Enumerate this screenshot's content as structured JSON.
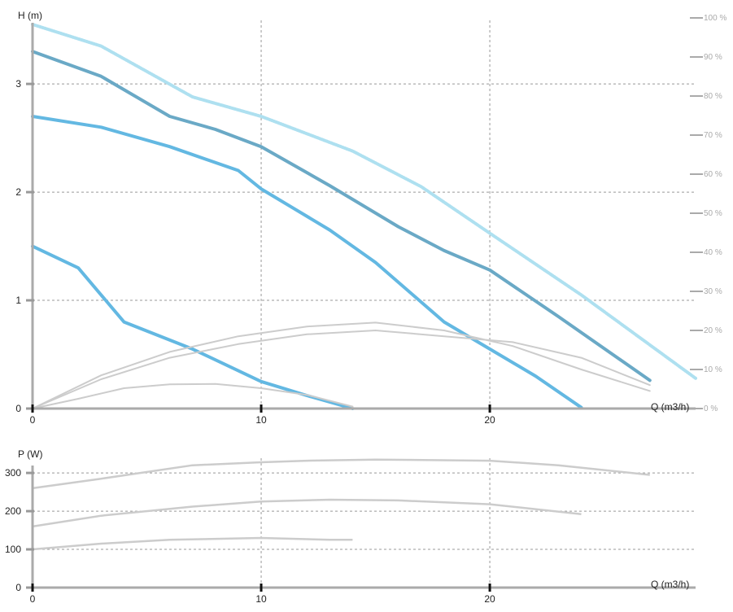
{
  "chart_data": [
    {
      "type": "line",
      "ylabel": "H (m)",
      "xlabel": "Q (m3/h)",
      "xlim": [
        0,
        29
      ],
      "ylim": [
        0,
        3.55
      ],
      "x_ticks": [
        0,
        10,
        20
      ],
      "y_ticks": [
        0,
        1,
        2,
        3
      ],
      "right_axis": {
        "ylim": [
          0,
          100
        ],
        "ticks": [
          "0 %",
          "10 %",
          "20 %",
          "30 %",
          "40 %",
          "50 %",
          "60 %",
          "70 %",
          "80 %",
          "90 %",
          "100 %"
        ]
      },
      "grid": true,
      "series": [
        {
          "role": "max-dotted",
          "color": "#aee0f0",
          "x": [
            0,
            3,
            7,
            10,
            14,
            17,
            20,
            24,
            29
          ],
          "y": [
            3.55,
            3.35,
            2.88,
            2.7,
            2.38,
            2.05,
            1.62,
            1.05,
            0.28
          ]
        },
        {
          "role": "high",
          "color": "#6aa9c6",
          "x": [
            0,
            3,
            6,
            8,
            10,
            13,
            16,
            18,
            20,
            23,
            27
          ],
          "y": [
            3.3,
            3.07,
            2.7,
            2.58,
            2.42,
            2.06,
            1.68,
            1.46,
            1.28,
            0.85,
            0.26
          ]
        },
        {
          "role": "medium",
          "color": "#63b8e2",
          "x": [
            0,
            3,
            6,
            9,
            10,
            13,
            15,
            18,
            20,
            22,
            24
          ],
          "y": [
            2.7,
            2.6,
            2.42,
            2.2,
            2.03,
            1.65,
            1.35,
            0.8,
            0.55,
            0.3,
            0.01
          ]
        },
        {
          "role": "low",
          "color": "#63b8e2",
          "x": [
            0,
            2,
            3,
            4,
            7,
            10,
            12,
            14
          ],
          "y": [
            1.5,
            1.3,
            1.05,
            0.8,
            0.55,
            0.25,
            0.12,
            0.0
          ]
        },
        {
          "role": "efficiency",
          "color": "#cccccc",
          "axis": "right",
          "x": [
            0,
            3,
            6,
            9,
            12,
            15,
            18,
            21,
            24,
            27
          ],
          "y": [
            0,
            8.5,
            14.5,
            18.5,
            21,
            22,
            20,
            16,
            10,
            4.5
          ]
        },
        {
          "role": "efficiency",
          "color": "#cccccc",
          "axis": "right",
          "x": [
            0,
            3,
            6,
            9,
            12,
            15,
            18,
            21,
            24,
            27
          ],
          "y": [
            0,
            7.5,
            13,
            16.5,
            19,
            20,
            18.5,
            17,
            13,
            6
          ]
        },
        {
          "role": "efficiency",
          "color": "#cccccc",
          "axis": "right",
          "x": [
            0,
            2,
            4,
            6,
            8,
            10,
            12,
            14
          ],
          "y": [
            0,
            2.5,
            5.2,
            6.2,
            6.3,
            5.2,
            3.5,
            0.5
          ]
        }
      ]
    },
    {
      "type": "line",
      "ylabel": "P (W)",
      "xlabel": "Q (m3/h)",
      "xlim": [
        0,
        29
      ],
      "ylim": [
        0,
        345
      ],
      "x_ticks": [
        0,
        10,
        20
      ],
      "y_ticks": [
        0,
        100,
        200,
        300
      ],
      "grid": true,
      "series": [
        {
          "color": "#cccccc",
          "x": [
            0,
            3,
            7,
            10,
            12,
            15,
            20,
            23,
            27
          ],
          "y": [
            260,
            285,
            320,
            328,
            332,
            335,
            332,
            320,
            295
          ]
        },
        {
          "color": "#cccccc",
          "x": [
            0,
            3,
            7,
            10,
            13,
            16,
            20,
            24
          ],
          "y": [
            160,
            188,
            212,
            225,
            230,
            228,
            218,
            192
          ]
        },
        {
          "color": "#cccccc",
          "x": [
            0,
            3,
            6,
            10,
            13,
            14
          ],
          "y": [
            100,
            115,
            125,
            130,
            125,
            125
          ]
        }
      ]
    }
  ]
}
